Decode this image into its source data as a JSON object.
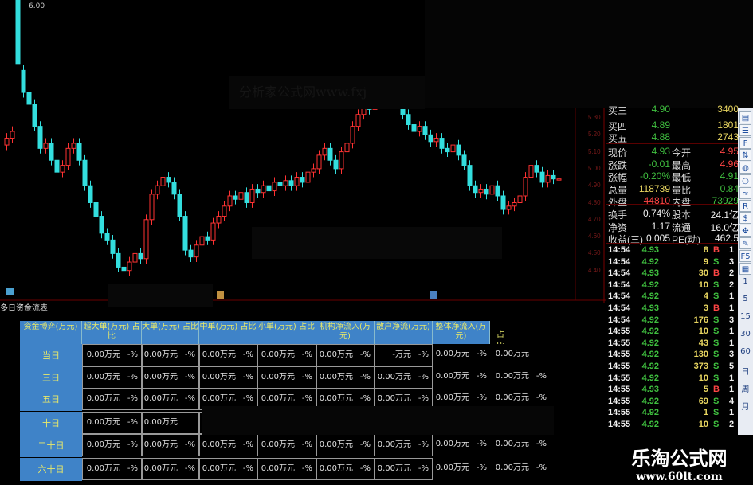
{
  "chart": {
    "price_axis": [
      "5.30",
      "5.20",
      "5.10",
      "5.00",
      "4.90",
      "4.80",
      "4.70",
      "4.60",
      "4.50",
      "4.40"
    ],
    "top_label": "6.00",
    "up_color": "#ff3232",
    "down_color": "#33dede",
    "candles": [
      [
        5.14,
        5.18
      ],
      [
        5.18,
        5.22
      ],
      [
        6.0,
        5.62
      ],
      [
        5.58,
        5.45
      ],
      [
        5.45,
        5.38
      ],
      [
        5.38,
        5.25
      ],
      [
        5.25,
        5.12
      ],
      [
        5.12,
        5.15
      ],
      [
        5.15,
        5.05
      ],
      [
        5.05,
        4.98
      ],
      [
        4.98,
        5.02
      ],
      [
        5.02,
        5.12
      ],
      [
        5.12,
        5.15
      ],
      [
        5.15,
        5.05
      ],
      [
        5.05,
        4.9
      ],
      [
        4.9,
        4.8
      ],
      [
        4.8,
        4.72
      ],
      [
        4.72,
        4.62
      ],
      [
        4.62,
        4.58
      ],
      [
        4.58,
        4.5
      ],
      [
        4.5,
        4.42
      ],
      [
        4.42,
        4.4
      ],
      [
        4.4,
        4.45
      ],
      [
        4.45,
        4.5
      ],
      [
        4.5,
        4.47
      ],
      [
        4.47,
        4.7
      ],
      [
        4.7,
        4.85
      ],
      [
        4.85,
        4.9
      ],
      [
        4.9,
        4.95
      ],
      [
        4.95,
        4.92
      ],
      [
        4.92,
        4.85
      ],
      [
        4.85,
        4.72
      ],
      [
        4.72,
        4.52
      ],
      [
        4.52,
        4.48
      ],
      [
        4.48,
        4.55
      ],
      [
        4.55,
        4.6
      ],
      [
        4.6,
        4.58
      ],
      [
        4.58,
        4.68
      ],
      [
        4.68,
        4.72
      ],
      [
        4.72,
        4.78
      ],
      [
        4.78,
        4.84
      ],
      [
        4.84,
        4.82
      ],
      [
        4.82,
        4.86
      ],
      [
        4.86,
        4.8
      ],
      [
        4.8,
        4.88
      ],
      [
        4.88,
        4.86
      ],
      [
        4.86,
        4.9
      ],
      [
        4.9,
        4.87
      ],
      [
        4.87,
        4.92
      ],
      [
        4.92,
        4.9
      ],
      [
        4.9,
        4.93
      ],
      [
        4.93,
        4.9
      ],
      [
        4.9,
        4.95
      ],
      [
        4.95,
        4.92
      ],
      [
        4.92,
        4.98
      ],
      [
        4.98,
        5.0
      ],
      [
        5.0,
        5.08
      ],
      [
        5.08,
        5.12
      ],
      [
        5.12,
        5.05
      ],
      [
        5.05,
        5.0
      ],
      [
        5.0,
        5.1
      ],
      [
        5.1,
        5.15
      ],
      [
        5.15,
        5.25
      ],
      [
        5.25,
        5.32
      ],
      [
        5.32,
        5.38
      ],
      [
        5.38,
        5.35
      ],
      [
        5.35,
        5.42
      ],
      [
        5.42,
        5.45
      ],
      [
        5.45,
        5.5
      ],
      [
        5.5,
        5.44
      ],
      [
        5.44,
        5.4
      ],
      [
        5.4,
        5.32
      ],
      [
        5.32,
        5.26
      ],
      [
        5.26,
        5.22
      ],
      [
        5.22,
        5.25
      ],
      [
        5.25,
        5.2
      ],
      [
        5.2,
        5.16
      ],
      [
        5.16,
        5.18
      ],
      [
        5.18,
        5.12
      ],
      [
        5.12,
        5.1
      ],
      [
        5.1,
        5.14
      ],
      [
        5.14,
        5.08
      ],
      [
        5.08,
        5.02
      ],
      [
        5.02,
        4.9
      ],
      [
        4.9,
        4.86
      ],
      [
        4.86,
        4.88
      ],
      [
        4.88,
        4.85
      ],
      [
        4.85,
        4.9
      ],
      [
        4.9,
        4.84
      ],
      [
        4.84,
        4.76
      ],
      [
        4.76,
        4.78
      ],
      [
        4.78,
        4.8
      ],
      [
        4.8,
        4.84
      ],
      [
        4.84,
        4.95
      ],
      [
        4.95,
        5.02
      ],
      [
        5.02,
        4.98
      ],
      [
        4.98,
        4.92
      ],
      [
        4.92,
        4.96
      ],
      [
        4.96,
        4.94
      ],
      [
        4.94,
        4.94
      ]
    ],
    "watermark": "分析家公式网www.fxj"
  },
  "quote": {
    "partial": {
      "label": "买三",
      "price": "4.90",
      "vol": "3400"
    },
    "bids": [
      {
        "label": "买四",
        "price": "4.89",
        "vol": "1801"
      },
      {
        "label": "买五",
        "price": "4.88",
        "vol": "2743"
      }
    ],
    "stats": [
      {
        "l1": "现价",
        "v1": "4.93",
        "c1": "g",
        "l2": "今开",
        "v2": "4.95",
        "c2": "r"
      },
      {
        "l1": "涨跌",
        "v1": "-0.01",
        "c1": "g",
        "l2": "最高",
        "v2": "4.96",
        "c2": "r"
      },
      {
        "l1": "涨幅",
        "v1": "-0.20%",
        "c1": "g",
        "l2": "最低",
        "v2": "4.91",
        "c2": "g"
      },
      {
        "l1": "总量",
        "v1": "118739",
        "c1": "y",
        "l2": "量比",
        "v2": "0.84",
        "c2": "g"
      },
      {
        "l1": "外盘",
        "v1": "44810",
        "c1": "r",
        "l2": "内盘",
        "v2": "73929",
        "c2": "g"
      },
      {
        "l1": "换手",
        "v1": "0.74%",
        "c1": "w",
        "l2": "股本",
        "v2": "24.1亿",
        "c2": "w"
      },
      {
        "l1": "净资",
        "v1": "1.17",
        "c1": "w",
        "l2": "流通",
        "v2": "16.0亿",
        "c2": "w"
      },
      {
        "l1": "收益(三)",
        "v1": "0.005",
        "c1": "w",
        "l2": "PE(动)",
        "v2": "462.5",
        "c2": "w"
      }
    ],
    "trades": [
      [
        "14:54",
        "4.93",
        "8",
        "B",
        "1"
      ],
      [
        "14:54",
        "4.92",
        "9",
        "S",
        "3"
      ],
      [
        "14:54",
        "4.93",
        "30",
        "B",
        "2"
      ],
      [
        "14:54",
        "4.92",
        "10",
        "S",
        "2"
      ],
      [
        "14:54",
        "4.92",
        "4",
        "S",
        "1"
      ],
      [
        "14:54",
        "4.93",
        "3",
        "B",
        "1"
      ],
      [
        "14:54",
        "4.92",
        "176",
        "S",
        "3"
      ],
      [
        "14:55",
        "4.92",
        "10",
        "S",
        "1"
      ],
      [
        "14:55",
        "4.92",
        "43",
        "S",
        "1"
      ],
      [
        "14:55",
        "4.92",
        "130",
        "S",
        "3"
      ],
      [
        "14:55",
        "4.92",
        "373",
        "S",
        "5"
      ],
      [
        "14:55",
        "4.92",
        "10",
        "S",
        "1"
      ],
      [
        "14:55",
        "4.93",
        "5",
        "B",
        "1"
      ],
      [
        "14:55",
        "4.92",
        "69",
        "S",
        "4"
      ],
      [
        "14:55",
        "4.92",
        "1",
        "S",
        "1"
      ],
      [
        "14:55",
        "4.92",
        "10",
        "S",
        "2"
      ]
    ]
  },
  "toolbar": {
    "icons": [
      "chart-icon",
      "list-icon",
      "f10-icon",
      "compare-icon",
      "globe-icon",
      "circle-icon",
      "wave-icon",
      "rsi-icon",
      "money-icon",
      "move-icon",
      "pencil-icon",
      "f5-icon",
      "grid-icon"
    ],
    "periods": [
      "1",
      "5",
      "15",
      "30",
      "60",
      "日",
      "周",
      "月"
    ]
  },
  "table": {
    "title": "多日资金流表",
    "headers": [
      "资金博弈(万元)",
      "超大单(万元) 占比",
      "大单(万元) 占比",
      "中单(万元) 占比",
      "小单(万元) 占比",
      "机构净流入(万元)",
      "散户净流(万元)",
      "整体净流入(万元)"
    ],
    "extra_header": "占比",
    "rows": [
      {
        "label": "当日",
        "cells": [
          [
            "0.00万元",
            "-%"
          ],
          [
            "0.00万元",
            "-%"
          ],
          [
            "0.00万元",
            "-%"
          ],
          [
            "0.00万元",
            "-%"
          ],
          [
            "0.00万元",
            "-%"
          ],
          [
            "-万元",
            "-%"
          ],
          [
            "0.00万元",
            "-%"
          ],
          [
            "0.00万元",
            ""
          ]
        ]
      },
      {
        "label": "三日",
        "cells": [
          [
            "0.00万元",
            "-%"
          ],
          [
            "0.00万元",
            "-%"
          ],
          [
            "0.00万元",
            "-%"
          ],
          [
            "0.00万元",
            "-%"
          ],
          [
            "0.00万元",
            "-%"
          ],
          [
            "0.00万元",
            "-%"
          ],
          [
            "0.00万元",
            "-%"
          ],
          [
            "0.00万元",
            "-%"
          ]
        ]
      },
      {
        "label": "五日",
        "cells": [
          [
            "0.00万元",
            "-%"
          ],
          [
            "0.00万元",
            "-%"
          ],
          [
            "0.00万元",
            "-%"
          ],
          [
            "0.00万元",
            "-%"
          ],
          [
            "0.00万元",
            "-%"
          ],
          [
            "0.00万元",
            "-%"
          ],
          [
            "0.00万元",
            "-%"
          ],
          [
            "0.00万元",
            "-%"
          ]
        ]
      },
      {
        "label": "十日",
        "cells": [
          [
            "0.00万元",
            "-%"
          ],
          [
            "0.00万元",
            ""
          ],
          [
            "",
            ""
          ],
          [
            "",
            ""
          ],
          [
            "",
            ""
          ],
          [
            "",
            ""
          ],
          [
            "",
            ""
          ],
          [
            "",
            "-%"
          ]
        ]
      },
      {
        "label": "二十日",
        "cells": [
          [
            "0.00万元",
            "-%"
          ],
          [
            "0.00万元",
            "-%"
          ],
          [
            "0.00万元",
            "-%"
          ],
          [
            "0.00万元",
            "-%"
          ],
          [
            "0.00万元",
            "-%"
          ],
          [
            "0.00万元",
            "-%"
          ],
          [
            "0.00万元",
            "-%"
          ],
          [
            "0.00万元",
            "-%"
          ]
        ]
      },
      {
        "label": "六十日",
        "cells": [
          [
            "0.00万元",
            "-%"
          ],
          [
            "0.00万元",
            "-%"
          ],
          [
            "0.00万元",
            "-%"
          ],
          [
            "0.00万元",
            "-%"
          ],
          [
            "0.00万元",
            "-%"
          ],
          [
            "0.00万元",
            "-%"
          ],
          [
            "0.00万元",
            "-%"
          ],
          [
            "0.00万元",
            "-%"
          ]
        ]
      }
    ]
  },
  "logo": {
    "name": "乐淘公式网",
    "url": "www.60lt.com"
  }
}
